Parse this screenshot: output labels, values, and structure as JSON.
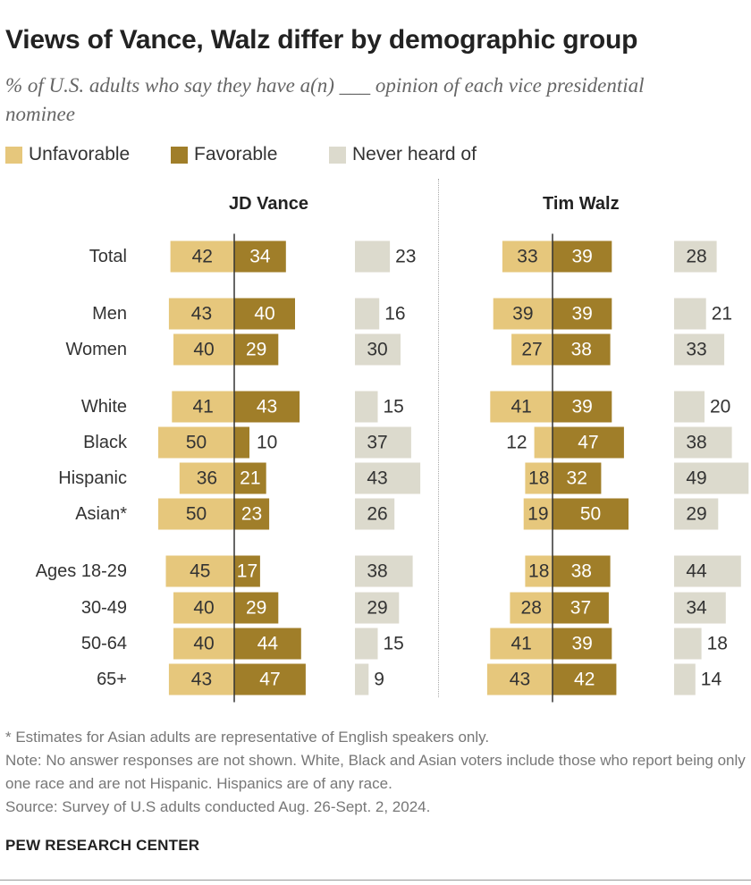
{
  "header": {
    "title": "Views of Vance, Walz differ by demographic group",
    "subtitle": "% of U.S. adults who say they have a(n) ___ opinion of each vice presidential nominee"
  },
  "legend": [
    {
      "label": "Unfavorable",
      "color": "#e6c77c"
    },
    {
      "label": "Favorable",
      "color": "#a07e29"
    },
    {
      "label": "Never heard of",
      "color": "#dcdacd"
    }
  ],
  "chart_data": {
    "type": "bar",
    "orientation": "diverging-horizontal",
    "categories": [
      "Total",
      "Men",
      "Women",
      "White",
      "Black",
      "Hispanic",
      "Asian*",
      "Ages 18-29",
      "30-49",
      "50-64",
      "65+"
    ],
    "panels": [
      {
        "name": "JD Vance",
        "series": [
          {
            "name": "Unfavorable",
            "values": [
              42,
              43,
              40,
              41,
              50,
              36,
              50,
              45,
              40,
              40,
              43
            ]
          },
          {
            "name": "Favorable",
            "values": [
              34,
              40,
              29,
              43,
              10,
              21,
              23,
              17,
              29,
              44,
              47
            ]
          },
          {
            "name": "Never heard of",
            "values": [
              23,
              16,
              30,
              15,
              37,
              43,
              26,
              38,
              29,
              15,
              9
            ]
          }
        ]
      },
      {
        "name": "Tim Walz",
        "series": [
          {
            "name": "Unfavorable",
            "values": [
              33,
              39,
              27,
              41,
              12,
              18,
              19,
              18,
              28,
              41,
              43
            ]
          },
          {
            "name": "Favorable",
            "values": [
              39,
              39,
              38,
              39,
              47,
              32,
              50,
              38,
              37,
              39,
              42
            ]
          },
          {
            "name": "Never heard of",
            "values": [
              28,
              21,
              33,
              20,
              38,
              49,
              29,
              44,
              34,
              18,
              14
            ]
          }
        ]
      }
    ],
    "colors": {
      "unfavorable": "#e6c77c",
      "favorable": "#a07e29",
      "never": "#dcdacd",
      "value_text": "#333333",
      "axis": "#333333"
    }
  },
  "footnotes": {
    "asterisk": "* Estimates for Asian adults are representative of English speakers only.",
    "note": "Note: No answer responses are not shown. White, Black and Asian voters include those who report being only one race and are not Hispanic. Hispanics are of any race.",
    "source": "Source: Survey of U.S adults conducted Aug. 26-Sept. 2, 2024."
  },
  "brand": "PEW RESEARCH CENTER"
}
